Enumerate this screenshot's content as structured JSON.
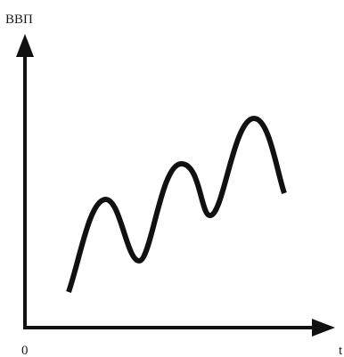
{
  "chart_data": {
    "type": "line",
    "ylabel": "ВВП",
    "xlabel": "t",
    "origin_label": "0",
    "grid": false,
    "legend": "none",
    "x_ticks": false,
    "y_ticks": false,
    "curve_shape": "wavy upward trend with three peaks",
    "color": "#111111"
  }
}
